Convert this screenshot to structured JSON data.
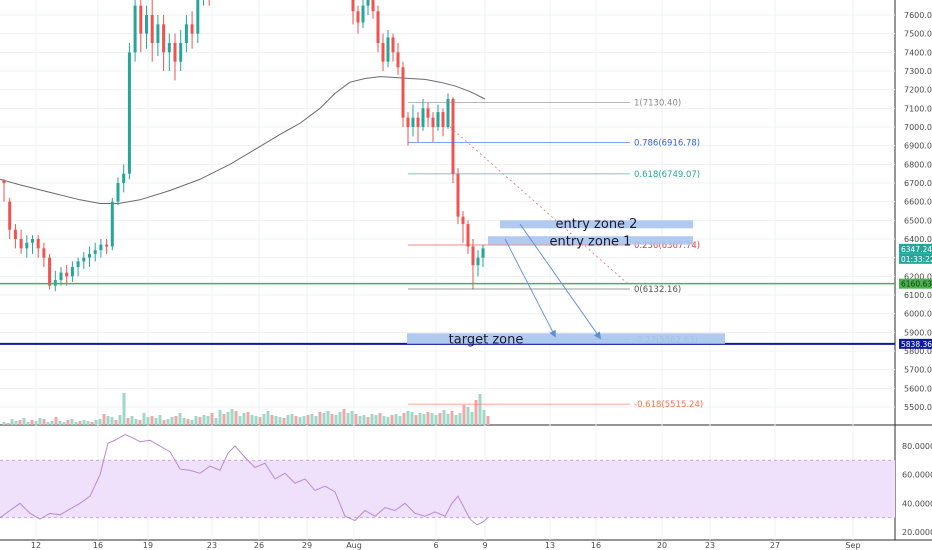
{
  "chart_data": {
    "type": "candlestick",
    "price_axis": {
      "ticks": [
        7600,
        7500,
        7400,
        7300,
        7200,
        7100,
        7000,
        6900,
        6800,
        6700,
        6600,
        6500,
        6400,
        6300,
        6200,
        6100,
        6000,
        5900,
        5800,
        5700,
        5600,
        5500
      ],
      "labels": [
        "7600.00",
        "7500.00",
        "7400.00",
        "7300.00",
        "7200.00",
        "7100.00",
        "7000.00",
        "6900.00",
        "6800.00",
        "6700.00",
        "6600.00",
        "6500.00",
        "6400.00",
        "6300.00",
        "6200.00",
        "6100.00",
        "6000.00",
        "5900.00",
        "5800.00",
        "5700.00",
        "5600.00",
        "5500.00"
      ]
    },
    "rsi_axis": {
      "ticks": [
        80,
        60,
        40,
        20
      ],
      "labels": [
        "80.0000",
        "60.0000",
        "40.0000",
        "20.0000"
      ],
      "band": [
        30,
        70
      ]
    },
    "time_axis": {
      "labels": [
        "12",
        "16",
        "19",
        "23",
        "26",
        "29",
        "Aug",
        "6",
        "9",
        "13",
        "16",
        "20",
        "23",
        "27",
        "Sep"
      ]
    },
    "price_badges": [
      {
        "label": "6347.24",
        "value": 6347.24,
        "color": "#26a69a"
      },
      {
        "label": "01:33:22",
        "value": 6300,
        "color": "#26a69a"
      },
      {
        "label": "6160.63",
        "value": 6160.63,
        "color": "#4caf50"
      },
      {
        "label": "5838.36",
        "value": 5838.36,
        "color": "#0d1a9e"
      }
    ],
    "fib_levels": [
      {
        "label": "1(7130.40)",
        "value": 7130.4,
        "color": "#8a8a8a"
      },
      {
        "label": "0.786(6916.78)",
        "value": 6916.78,
        "color": "#2962ff"
      },
      {
        "label": "0.618(6749.07)",
        "value": 6749.07,
        "color": "#26a69a"
      },
      {
        "label": "0.236(6367.74)",
        "value": 6367.74,
        "color": "#e53935"
      },
      {
        "label": "0(6132.16)",
        "value": 6132.16,
        "color": "#555555"
      },
      {
        "label": "-0.27(5862.63)",
        "value": 5862.63,
        "color": "#8a8a8a"
      },
      {
        "label": "-0.618(5515.24)",
        "value": 5515.24,
        "color": "#ff7043"
      }
    ],
    "zones": [
      {
        "label": "entry zone 2",
        "y_low": 6472,
        "y_high": 6500
      },
      {
        "label": "entry zone 1",
        "y_low": 6370,
        "y_high": 6415
      },
      {
        "label": "target zone",
        "y_low": 5838,
        "y_high": 5895
      }
    ],
    "horizontal_lines": [
      {
        "value": 6160.63,
        "color": "#4caf50"
      },
      {
        "value": 5838.36,
        "color": "#0d1a9e"
      }
    ],
    "candles": [
      [
        6715,
        6700,
        6600,
        6720
      ],
      [
        6600,
        6450,
        6400,
        6620
      ],
      [
        6450,
        6400,
        6350,
        6480
      ],
      [
        6400,
        6350,
        6320,
        6450
      ],
      [
        6350,
        6380,
        6300,
        6420
      ],
      [
        6380,
        6400,
        6320,
        6420
      ],
      [
        6400,
        6350,
        6300,
        6420
      ],
      [
        6350,
        6300,
        6250,
        6380
      ],
      [
        6300,
        6150,
        6130,
        6320
      ],
      [
        6150,
        6180,
        6120,
        6230
      ],
      [
        6180,
        6220,
        6150,
        6250
      ],
      [
        6220,
        6200,
        6150,
        6260
      ],
      [
        6200,
        6250,
        6170,
        6280
      ],
      [
        6250,
        6280,
        6200,
        6300
      ],
      [
        6280,
        6300,
        6240,
        6330
      ],
      [
        6300,
        6320,
        6250,
        6360
      ],
      [
        6320,
        6340,
        6280,
        6380
      ],
      [
        6340,
        6370,
        6300,
        6400
      ],
      [
        6370,
        6360,
        6320,
        6400
      ],
      [
        6360,
        6600,
        6340,
        6620
      ],
      [
        6600,
        6700,
        6580,
        6730
      ],
      [
        6700,
        6750,
        6650,
        6800
      ],
      [
        6750,
        7400,
        6720,
        7450
      ],
      [
        7400,
        7650,
        7350,
        7700
      ],
      [
        7650,
        7500,
        7400,
        7700
      ],
      [
        7500,
        7600,
        7420,
        7650
      ],
      [
        7600,
        7450,
        7350,
        7680
      ],
      [
        7450,
        7550,
        7380,
        7600
      ],
      [
        7550,
        7400,
        7300,
        7600
      ],
      [
        7400,
        7450,
        7300,
        7500
      ],
      [
        7450,
        7350,
        7250,
        7500
      ],
      [
        7350,
        7450,
        7300,
        7520
      ],
      [
        7450,
        7550,
        7400,
        7600
      ],
      [
        7550,
        7500,
        7420,
        7620
      ],
      [
        7500,
        7700,
        7450,
        7750
      ],
      [
        7700,
        7800,
        7650,
        7850
      ],
      [
        7800,
        7720,
        7650,
        7850
      ]
    ],
    "candles2": [
      [
        7700,
        7620,
        7550,
        7750
      ],
      [
        7620,
        7560,
        7500,
        7650
      ],
      [
        7560,
        7650,
        7530,
        7700
      ],
      [
        7650,
        7700,
        7600,
        7750
      ],
      [
        7700,
        7620,
        7580,
        7720
      ],
      [
        7620,
        7450,
        7400,
        7650
      ],
      [
        7450,
        7350,
        7300,
        7500
      ],
      [
        7350,
        7480,
        7320,
        7520
      ],
      [
        7480,
        7400,
        7350,
        7500
      ],
      [
        7400,
        7320,
        7280,
        7450
      ],
      [
        7320,
        7050,
        7000,
        7350
      ],
      [
        7050,
        7000,
        6900,
        7080
      ],
      [
        7000,
        7050,
        6950,
        7120
      ],
      [
        7050,
        7000,
        6920,
        7080
      ],
      [
        7000,
        7100,
        6980,
        7150
      ],
      [
        7100,
        7050,
        7000,
        7130
      ],
      [
        7050,
        7000,
        6920,
        7080
      ],
      [
        7000,
        7080,
        6980,
        7120
      ],
      [
        7080,
        7000,
        6950,
        7100
      ],
      [
        7000,
        7150,
        6990,
        7180
      ],
      [
        7150,
        6750,
        6700,
        7160
      ],
      [
        6750,
        6520,
        6480,
        6780
      ],
      [
        6520,
        6480,
        6380,
        6550
      ],
      [
        6480,
        6360,
        6320,
        6500
      ],
      [
        6360,
        6260,
        6130,
        6400
      ],
      [
        6260,
        6300,
        6200,
        6340
      ],
      [
        6300,
        6350,
        6250,
        6370
      ]
    ],
    "ma": [
      [
        0,
        6720
      ],
      [
        20,
        6690
      ],
      [
        50,
        6650
      ],
      [
        80,
        6610
      ],
      [
        100,
        6590
      ],
      [
        118,
        6590
      ],
      [
        140,
        6610
      ],
      [
        170,
        6660
      ],
      [
        200,
        6720
      ],
      [
        230,
        6800
      ],
      [
        255,
        6880
      ],
      [
        280,
        6960
      ],
      [
        300,
        7020
      ],
      [
        320,
        7100
      ],
      [
        335,
        7180
      ],
      [
        350,
        7240
      ],
      [
        365,
        7260
      ],
      [
        380,
        7270
      ],
      [
        395,
        7265
      ],
      [
        410,
        7260
      ],
      [
        425,
        7255
      ],
      [
        440,
        7240
      ],
      [
        455,
        7220
      ],
      [
        470,
        7190
      ],
      [
        485,
        7150
      ]
    ],
    "rsi": [
      [
        0,
        30
      ],
      [
        10,
        35
      ],
      [
        20,
        40
      ],
      [
        30,
        33
      ],
      [
        40,
        29
      ],
      [
        50,
        33
      ],
      [
        60,
        32
      ],
      [
        70,
        36
      ],
      [
        80,
        40
      ],
      [
        90,
        45
      ],
      [
        100,
        60
      ],
      [
        108,
        82
      ],
      [
        115,
        84
      ],
      [
        125,
        88
      ],
      [
        132,
        86
      ],
      [
        140,
        83
      ],
      [
        150,
        84
      ],
      [
        160,
        80
      ],
      [
        170,
        76
      ],
      [
        180,
        64
      ],
      [
        190,
        63
      ],
      [
        200,
        61
      ],
      [
        210,
        66
      ],
      [
        220,
        63
      ],
      [
        228,
        75
      ],
      [
        235,
        80
      ],
      [
        245,
        72
      ],
      [
        255,
        65
      ],
      [
        265,
        68
      ],
      [
        275,
        57
      ],
      [
        285,
        61
      ],
      [
        295,
        54
      ],
      [
        305,
        57
      ],
      [
        315,
        49
      ],
      [
        325,
        52
      ],
      [
        335,
        48
      ],
      [
        345,
        31
      ],
      [
        355,
        28
      ],
      [
        365,
        35
      ],
      [
        375,
        31
      ],
      [
        385,
        37
      ],
      [
        395,
        35
      ],
      [
        405,
        40
      ],
      [
        415,
        33
      ],
      [
        425,
        31
      ],
      [
        435,
        34
      ],
      [
        445,
        31
      ],
      [
        452,
        40
      ],
      [
        458,
        45
      ],
      [
        464,
        37
      ],
      [
        470,
        29
      ],
      [
        477,
        25
      ],
      [
        483,
        27
      ],
      [
        488,
        30
      ]
    ],
    "volume": [
      [
        4,
        3
      ],
      [
        8,
        2
      ],
      [
        12,
        6
      ],
      [
        16,
        4
      ],
      [
        20,
        5
      ],
      [
        24,
        7
      ],
      [
        28,
        3
      ],
      [
        32,
        5
      ],
      [
        36,
        4
      ],
      [
        40,
        7
      ],
      [
        44,
        6
      ],
      [
        48,
        3
      ],
      [
        52,
        4
      ],
      [
        56,
        8
      ],
      [
        60,
        4
      ],
      [
        64,
        3
      ],
      [
        68,
        5
      ],
      [
        72,
        6
      ],
      [
        76,
        3
      ],
      [
        80,
        4
      ],
      [
        84,
        5
      ],
      [
        88,
        4
      ],
      [
        92,
        3
      ],
      [
        96,
        5
      ],
      [
        100,
        6
      ],
      [
        104,
        11
      ],
      [
        108,
        9
      ],
      [
        112,
        8
      ],
      [
        116,
        5
      ],
      [
        120,
        10
      ],
      [
        124,
        32
      ],
      [
        128,
        7
      ],
      [
        132,
        9
      ],
      [
        136,
        6
      ],
      [
        140,
        5
      ],
      [
        144,
        12
      ],
      [
        148,
        8
      ],
      [
        152,
        9
      ],
      [
        156,
        7
      ],
      [
        160,
        10
      ],
      [
        164,
        5
      ],
      [
        168,
        6
      ],
      [
        172,
        8
      ],
      [
        176,
        9
      ],
      [
        180,
        12
      ],
      [
        184,
        7
      ],
      [
        188,
        6
      ],
      [
        192,
        5
      ],
      [
        196,
        9
      ],
      [
        200,
        8
      ],
      [
        204,
        10
      ],
      [
        208,
        9
      ],
      [
        212,
        12
      ],
      [
        216,
        7
      ],
      [
        220,
        15
      ],
      [
        224,
        11
      ],
      [
        228,
        13
      ],
      [
        232,
        16
      ],
      [
        236,
        14
      ],
      [
        240,
        9
      ],
      [
        244,
        12
      ],
      [
        248,
        13
      ],
      [
        252,
        10
      ],
      [
        256,
        9
      ],
      [
        260,
        8
      ],
      [
        264,
        11
      ],
      [
        268,
        14
      ],
      [
        272,
        10
      ],
      [
        276,
        9
      ],
      [
        280,
        8
      ],
      [
        284,
        7
      ],
      [
        288,
        10
      ],
      [
        292,
        11
      ],
      [
        296,
        9
      ],
      [
        300,
        8
      ],
      [
        304,
        9
      ],
      [
        308,
        10
      ],
      [
        312,
        11
      ],
      [
        316,
        9
      ],
      [
        320,
        13
      ],
      [
        324,
        12
      ],
      [
        328,
        14
      ],
      [
        332,
        11
      ],
      [
        336,
        10
      ],
      [
        340,
        13
      ],
      [
        344,
        16
      ],
      [
        348,
        12
      ],
      [
        352,
        14
      ],
      [
        356,
        11
      ],
      [
        360,
        9
      ],
      [
        364,
        10
      ],
      [
        368,
        8
      ],
      [
        372,
        11
      ],
      [
        376,
        10
      ],
      [
        380,
        12
      ],
      [
        384,
        9
      ],
      [
        388,
        8
      ],
      [
        392,
        10
      ],
      [
        396,
        11
      ],
      [
        400,
        9
      ],
      [
        404,
        12
      ],
      [
        408,
        14
      ],
      [
        412,
        13
      ],
      [
        416,
        10
      ],
      [
        420,
        12
      ],
      [
        424,
        11
      ],
      [
        428,
        13
      ],
      [
        432,
        12
      ],
      [
        436,
        10
      ],
      [
        440,
        12
      ],
      [
        444,
        15
      ],
      [
        448,
        11
      ],
      [
        452,
        14
      ],
      [
        456,
        10
      ],
      [
        460,
        12
      ],
      [
        464,
        20
      ],
      [
        468,
        18
      ],
      [
        472,
        13
      ],
      [
        476,
        25
      ],
      [
        480,
        31
      ],
      [
        484,
        15
      ],
      [
        488,
        9
      ]
    ]
  }
}
